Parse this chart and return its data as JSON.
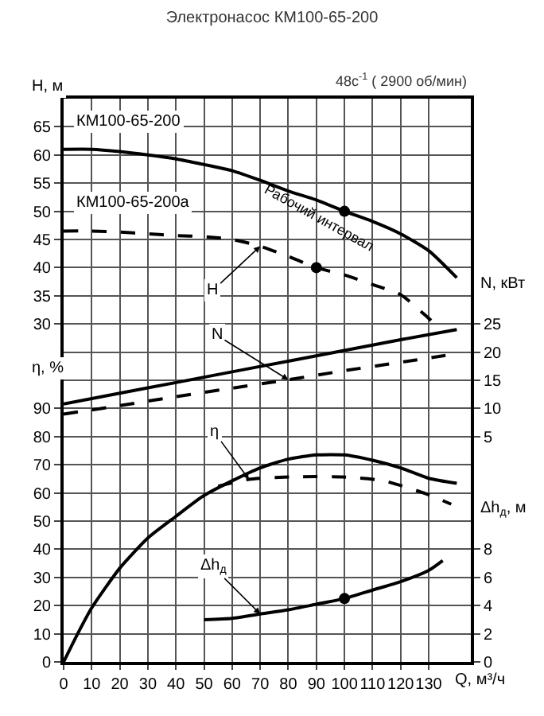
{
  "chart_data": [
    {
      "type": "line",
      "title": "Электронасос КМ100-65-200",
      "subtitle": "48с$^{-1}$ ( 2900 об/мин)",
      "ylabel": "H, м",
      "y2label": "N, кВт",
      "xlim": [
        0,
        145
      ],
      "xticks": [
        0,
        10,
        20,
        30,
        40,
        50,
        60,
        70,
        80,
        90,
        100,
        110,
        120,
        130
      ],
      "tick_labels": "y",
      "ylim": [
        -30,
        70
      ],
      "yticks": [
        30,
        35,
        40,
        45,
        50,
        55,
        60,
        65
      ],
      "y2lim": [
        -35,
        65
      ],
      "y2ticks": [
        5,
        10,
        15,
        20,
        25
      ],
      "grid": true,
      "legend": false,
      "marker": "none",
      "series": [
        {
          "name": "КМ100-65-200",
          "color": "#000000",
          "line_style": "solid",
          "x": [
            0,
            10,
            20,
            30,
            40,
            50,
            60,
            70,
            80,
            90,
            100,
            110,
            120,
            130,
            140
          ],
          "values": [
            61,
            61,
            60.6,
            60,
            59.3,
            58.3,
            57.2,
            55.5,
            53.6,
            52,
            50,
            48.2,
            46,
            43,
            38.2
          ]
        },
        {
          "name": "КМ100-65-200а",
          "color": "#000000",
          "line_style": "dashed",
          "x": [
            0,
            10,
            20,
            30,
            40,
            50,
            60,
            70,
            80,
            90,
            100,
            110,
            120,
            130,
            133
          ],
          "values": [
            46.5,
            46.5,
            46.3,
            46,
            45.7,
            45.5,
            45,
            43.8,
            42,
            40,
            38.7,
            37,
            35.2,
            31,
            29.7
          ]
        },
        {
          "axis": "y2",
          "color": "#000000",
          "line_style": "solid",
          "x": [
            0,
            20,
            40,
            60,
            80,
            100,
            120,
            140
          ],
          "values": [
            10.8,
            12.7,
            14.6,
            16.5,
            18.4,
            20.3,
            22.2,
            24.0
          ]
        },
        {
          "axis": "y2",
          "color": "#000000",
          "line_style": "dashed",
          "x": [
            0,
            20,
            40,
            60,
            80,
            100,
            120,
            136
          ],
          "values": [
            9.0,
            10.5,
            12.1,
            13.6,
            15.1,
            16.7,
            18.2,
            19.4
          ]
        },
        {
          "type": "scatter",
          "color": "#000000",
          "marker": "circle",
          "x": [
            100
          ],
          "values": [
            50
          ]
        },
        {
          "type": "scatter",
          "color": "#000000",
          "marker": "circle",
          "x": [
            90
          ],
          "values": [
            40
          ]
        }
      ],
      "annotations": [
        "Рабочий интервал",
        {
          "text": "H",
          "x": 70,
          "y": 43.8
        },
        {
          "text": "N",
          "x": 80,
          "y": 20.1
        }
      ]
    },
    {
      "type": "line",
      "xlabel": "Q, м³/ч",
      "ylabel": "η, %",
      "y2label": "Δh$_{д}$, м",
      "xlim": [
        0,
        145
      ],
      "xticks": [
        0,
        10,
        20,
        30,
        40,
        50,
        60,
        70,
        80,
        90,
        100,
        110,
        120,
        130
      ],
      "ylim": [
        0,
        200
      ],
      "yticks": [
        0,
        10,
        20,
        30,
        40,
        50,
        60,
        70,
        80,
        90
      ],
      "y2lim": [
        0,
        40
      ],
      "y2ticks": [
        0,
        2,
        4,
        6,
        8
      ],
      "grid": true,
      "legend": false,
      "marker": "none",
      "series": [
        {
          "color": "#000000",
          "line_style": "solid",
          "x": [
            0,
            5,
            10,
            20,
            30,
            40,
            50,
            60,
            70,
            80,
            90,
            100,
            110,
            120,
            130,
            140
          ],
          "values": [
            0,
            10,
            19.2,
            33.3,
            44,
            51.7,
            59.1,
            64.3,
            68.9,
            72,
            73.5,
            73.5,
            71.6,
            68.9,
            65.2,
            63.4
          ]
        },
        {
          "color": "#000000",
          "line_style": "dashed",
          "x": [
            55,
            66,
            81,
            99,
            114,
            129,
            138
          ],
          "values": [
            62.4,
            64.8,
            65.7,
            65.7,
            64.3,
            59.7,
            56
          ]
        },
        {
          "axis": "y2",
          "color": "#000000",
          "line_style": "solid",
          "x": [
            50,
            60,
            70,
            80,
            90,
            100,
            110,
            120,
            130,
            135
          ],
          "values": [
            3.0,
            3.1,
            3.4,
            3.7,
            4.1,
            4.5,
            5.1,
            5.7,
            6.5,
            7.2
          ]
        },
        {
          "type": "scatter",
          "axis": "y2",
          "color": "#000000",
          "marker": "circle",
          "x": [
            100
          ],
          "values": [
            4.5
          ]
        }
      ],
      "annotations": [
        {
          "text": "η",
          "x": 66,
          "y": 64.8
        },
        {
          "text": "Δh$_{д}$",
          "x": 70,
          "y": 17
        }
      ]
    }
  ]
}
